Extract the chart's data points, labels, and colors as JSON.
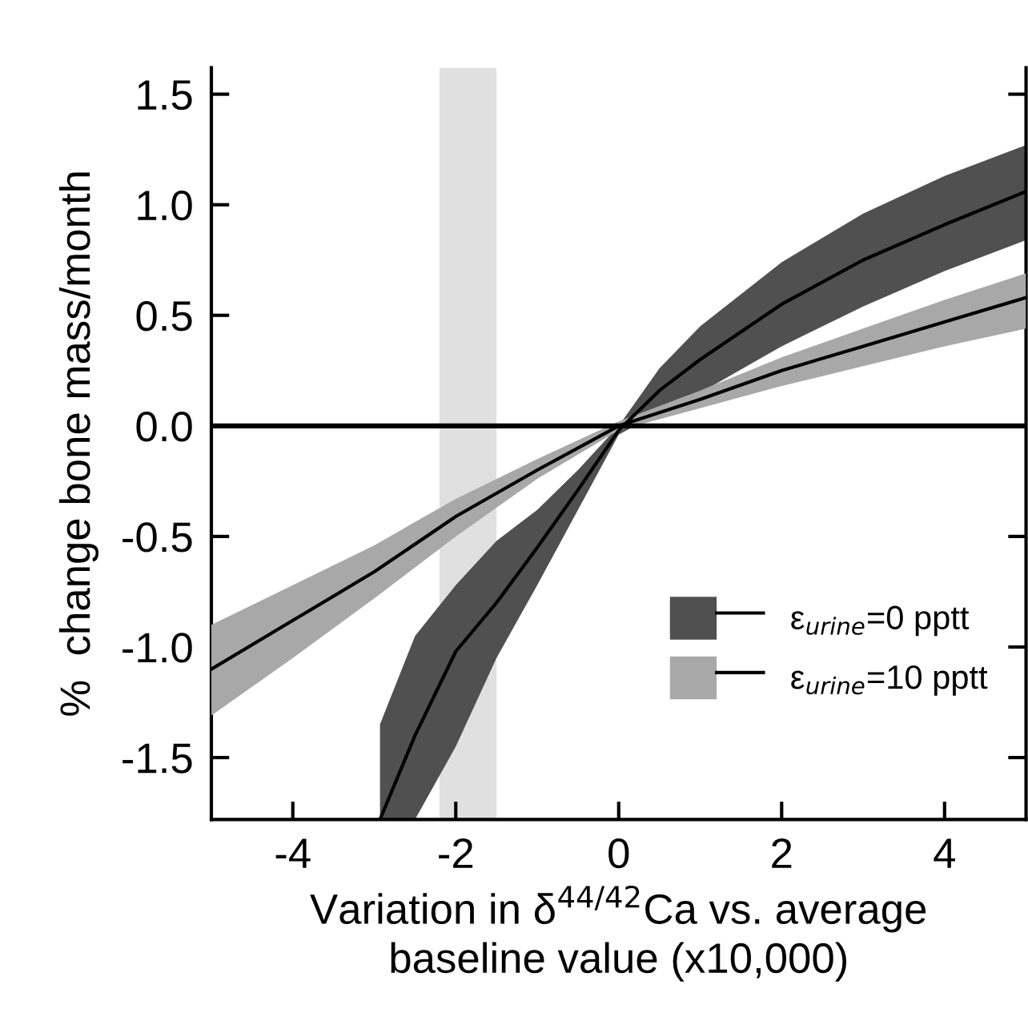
{
  "chart_data": {
    "type": "line",
    "xlabel": "Variation in δ$^{44/42}$Ca vs. average\nbaseline value (x10,000)",
    "ylabel": "%  change bone mass/month",
    "xlim": [
      -5,
      5
    ],
    "ylim": [
      -1.78,
      1.62
    ],
    "xticks": [
      -4,
      -2,
      0,
      2,
      4
    ],
    "yticks": [
      -1.5,
      {
        "value": -1,
        "label": "-1.0"
      },
      -0.5,
      {
        "value": 0,
        "label": "0.0"
      },
      0.5,
      {
        "value": 1,
        "label": "1.0"
      },
      1.5
    ],
    "series": [
      {
        "name": "ε$_{urine}$=0 pptt",
        "color": "#000000",
        "x": [
          -2.93,
          -2.5,
          -2.0,
          -1.5,
          -1.0,
          -0.5,
          0,
          0.5,
          1.0,
          2.0,
          3.0,
          4.0,
          5.0
        ],
        "values": [
          -1.78,
          -1.4,
          -1.02,
          -0.8,
          -0.55,
          -0.29,
          -0.02,
          0.16,
          0.3,
          0.55,
          0.75,
          0.91,
          1.06
        ],
        "lower": [
          -1.78,
          -1.78,
          -1.45,
          -1.05,
          -0.72,
          -0.38,
          -0.04,
          0.06,
          0.15,
          0.36,
          0.54,
          0.7,
          0.84
        ],
        "upper": [
          -1.35,
          -0.95,
          -0.72,
          -0.52,
          -0.38,
          -0.2,
          0.0,
          0.26,
          0.45,
          0.74,
          0.96,
          1.13,
          1.27
        ]
      },
      {
        "name": "ε$_{urine}$=10 pptt",
        "color": "#000000",
        "x": [
          -5,
          -4,
          -3,
          -2,
          -1,
          0,
          1,
          2,
          3,
          4,
          5
        ],
        "values": [
          -1.1,
          -0.88,
          -0.66,
          -0.41,
          -0.2,
          0.0,
          0.12,
          0.25,
          0.36,
          0.47,
          0.58
        ],
        "lower": [
          -1.31,
          -1.05,
          -0.78,
          -0.5,
          -0.24,
          -0.02,
          0.08,
          0.18,
          0.27,
          0.36,
          0.44
        ],
        "upper": [
          -0.9,
          -0.72,
          -0.54,
          -0.33,
          -0.15,
          0.02,
          0.16,
          0.31,
          0.44,
          0.57,
          0.69
        ]
      }
    ],
    "ref_lines": [
      {
        "axis": "y",
        "value": 0,
        "color": "#000000"
      }
    ],
    "bands": [
      {
        "axis": "x",
        "from": -2.2,
        "to": -1.5,
        "color": "#e0e0e0"
      }
    ],
    "legend": "bottom right",
    "grid": false
  }
}
